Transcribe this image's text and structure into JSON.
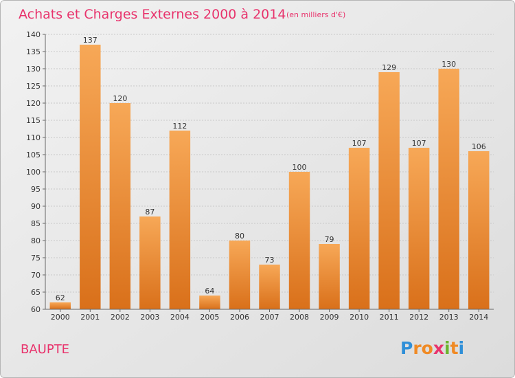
{
  "chart_data": {
    "type": "bar",
    "title": "Achats et Charges Externes 2000 à 2014",
    "unit": "(en milliers d'€)",
    "categories": [
      "2000",
      "2001",
      "2002",
      "2003",
      "2004",
      "2005",
      "2006",
      "2007",
      "2008",
      "2009",
      "2010",
      "2011",
      "2012",
      "2013",
      "2014"
    ],
    "values": [
      62,
      137,
      120,
      87,
      112,
      64,
      80,
      73,
      100,
      79,
      107,
      129,
      107,
      130,
      106
    ],
    "ylim": [
      60,
      140
    ],
    "yticks": [
      60,
      65,
      70,
      75,
      80,
      85,
      90,
      95,
      100,
      105,
      110,
      115,
      120,
      125,
      130,
      135,
      140
    ],
    "grid": true,
    "bar_color": "#f0922e",
    "bar_color_light": "#f7a857",
    "bar_color_dark": "#d9701a",
    "background": "#e8e8e8"
  },
  "place": "BAUPTE",
  "logo": {
    "text": "Proxiti",
    "letter_colors": [
      "#2f8fd8",
      "#f08a24",
      "#f08a24",
      "#e8336c",
      "#6ab42d",
      "#f08a24",
      "#2f8fd8"
    ]
  }
}
